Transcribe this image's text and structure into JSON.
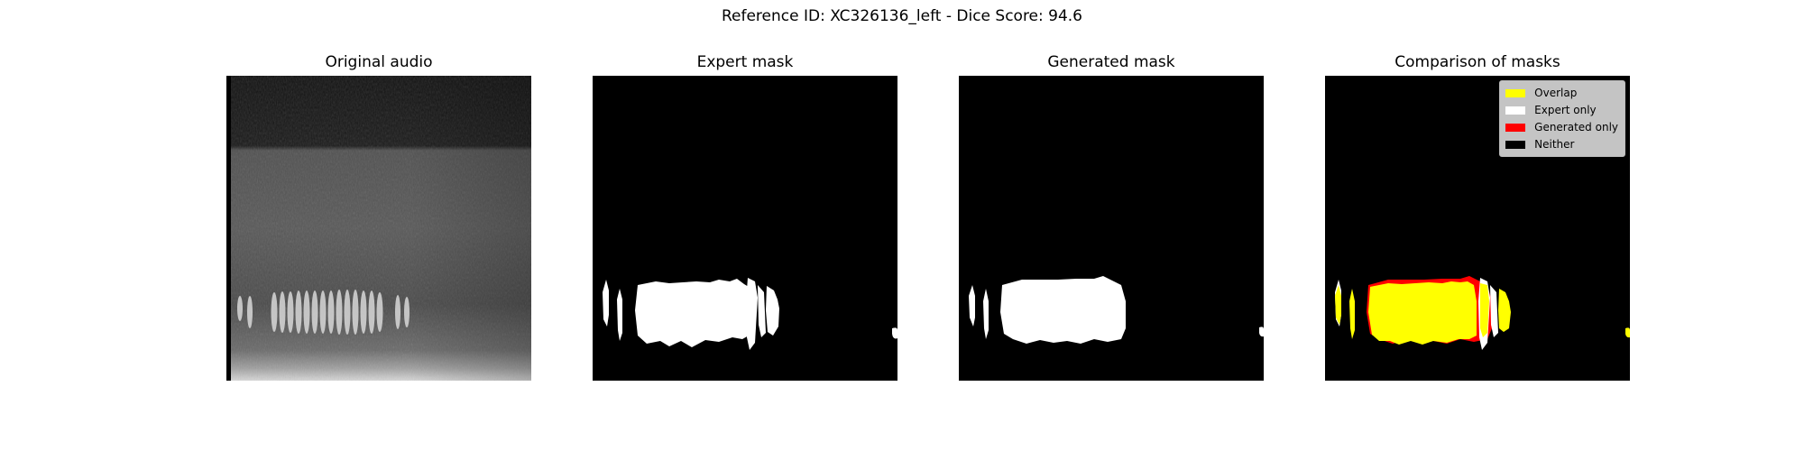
{
  "figure": {
    "suptitle": "Reference ID: XC326136_left - Dice Score: 94.6"
  },
  "panels": [
    {
      "title": "Original audio"
    },
    {
      "title": "Expert mask"
    },
    {
      "title": "Generated mask"
    },
    {
      "title": "Comparison of masks"
    }
  ],
  "legend": {
    "items": [
      {
        "label": "Overlap",
        "color": "#ffff00"
      },
      {
        "label": "Expert only",
        "color": "#ffffff"
      },
      {
        "label": "Generated only",
        "color": "#ff0000"
      },
      {
        "label": "Neither",
        "color": "#000000"
      }
    ]
  },
  "colors": {
    "background": "#000000",
    "mask": "#ffffff",
    "overlap": "#ffff00",
    "generated_only": "#ff0000"
  }
}
